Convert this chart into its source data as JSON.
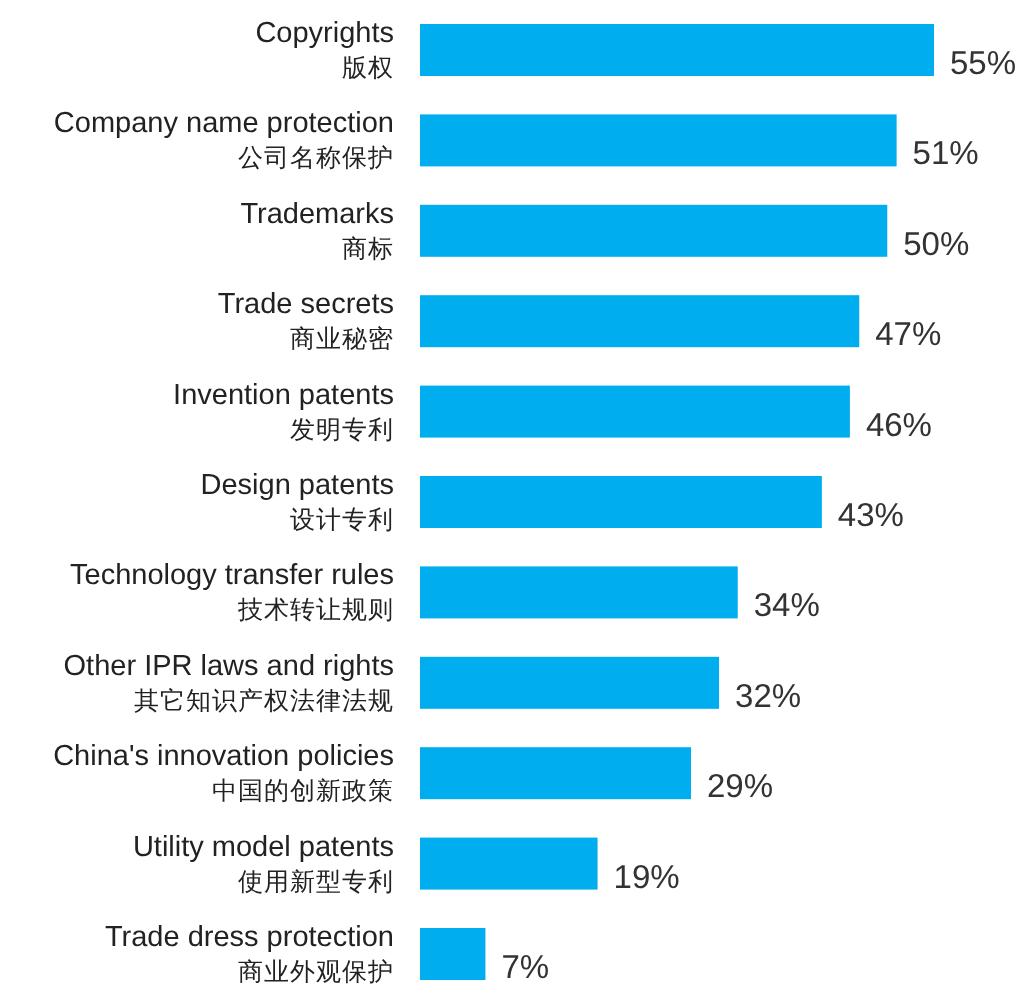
{
  "chart_data": {
    "type": "bar",
    "orientation": "horizontal",
    "categories": [
      "Copyrights\n版权",
      "Company name protection\n公司名称保护",
      "Trademarks\n商标",
      "Trade secrets\n商业秘密",
      "Invention patents\n发明专利",
      "Design patents\n设计专利",
      "Technology transfer rules\n技术转让规则",
      "Other IPR laws and rights\n其它知识产权法律法规",
      "China's innovation policies\n中国的创新政策",
      "Utility model patents\n使用新型专利",
      "Trade dress protection\n商业外观保护"
    ],
    "values": [
      55,
      51,
      50,
      47,
      46,
      43,
      34,
      32,
      29,
      19,
      7
    ],
    "value_labels": [
      "55%",
      "51%",
      "50%",
      "47%",
      "46%",
      "43%",
      "34%",
      "32%",
      "29%",
      "19%",
      "7%"
    ],
    "color": "#00aeef"
  }
}
